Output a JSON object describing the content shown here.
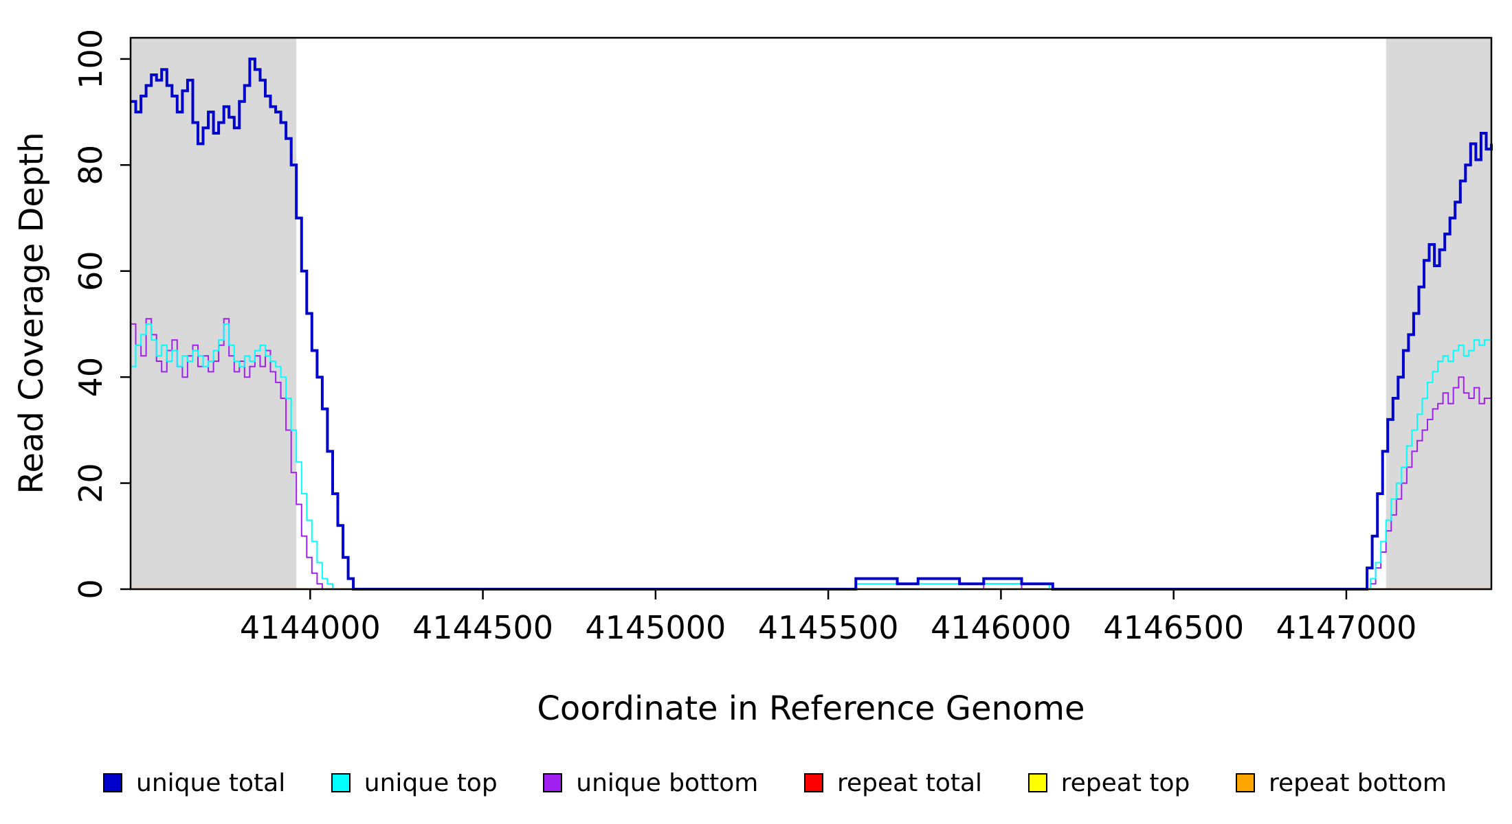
{
  "chart_data": {
    "type": "line",
    "title": "",
    "xlabel": "Coordinate in Reference Genome",
    "ylabel": "Read Coverage Depth",
    "xlim": [
      4143480,
      4147420
    ],
    "ylim": [
      0,
      104
    ],
    "xticks": [
      4144000,
      4144500,
      4145000,
      4145500,
      4146000,
      4146500,
      4147000
    ],
    "yticks": [
      0,
      20,
      40,
      60,
      80,
      100
    ],
    "grid": false,
    "legend_position": "bottom",
    "background_color": "#ffffff",
    "box_color": "#000000",
    "shaded_regions": [
      {
        "from": 4143480,
        "to": 4143960,
        "color": "#d9d9d9"
      },
      {
        "from": 4147115,
        "to": 4147420,
        "color": "#d9d9d9"
      }
    ],
    "series": [
      {
        "name": "repeat total",
        "color": "#ff0000",
        "width": 2,
        "points": [
          [
            4143480,
            0
          ],
          [
            4147420,
            0
          ]
        ]
      },
      {
        "name": "repeat top",
        "color": "#ffff00",
        "width": 2,
        "points": [
          [
            4143480,
            0
          ],
          [
            4147420,
            0
          ]
        ]
      },
      {
        "name": "repeat bottom",
        "color": "#ffa500",
        "width": 2.5,
        "points": [
          [
            4143480,
            0
          ],
          [
            4147420,
            0
          ]
        ]
      },
      {
        "name": "unique bottom",
        "color": "#a020f0",
        "width": 2,
        "points": [
          [
            4143480,
            50
          ],
          [
            4143495,
            46
          ],
          [
            4143510,
            44
          ],
          [
            4143525,
            51
          ],
          [
            4143540,
            48
          ],
          [
            4143555,
            43
          ],
          [
            4143570,
            41
          ],
          [
            4143585,
            45
          ],
          [
            4143600,
            47
          ],
          [
            4143615,
            42
          ],
          [
            4143630,
            40
          ],
          [
            4143645,
            44
          ],
          [
            4143660,
            46
          ],
          [
            4143675,
            42
          ],
          [
            4143690,
            44
          ],
          [
            4143705,
            41
          ],
          [
            4143720,
            43
          ],
          [
            4143735,
            46
          ],
          [
            4143750,
            51
          ],
          [
            4143765,
            44
          ],
          [
            4143780,
            41
          ],
          [
            4143795,
            43
          ],
          [
            4143810,
            40
          ],
          [
            4143825,
            42
          ],
          [
            4143840,
            44
          ],
          [
            4143855,
            42
          ],
          [
            4143870,
            45
          ],
          [
            4143885,
            41
          ],
          [
            4143900,
            39
          ],
          [
            4143915,
            36
          ],
          [
            4143930,
            30
          ],
          [
            4143945,
            22
          ],
          [
            4143960,
            16
          ],
          [
            4143975,
            10
          ],
          [
            4143990,
            6
          ],
          [
            4144005,
            3
          ],
          [
            4144020,
            1
          ],
          [
            4144035,
            0
          ],
          [
            4145950,
            1
          ],
          [
            4146060,
            0
          ],
          [
            4147070,
            1
          ],
          [
            4147085,
            4
          ],
          [
            4147100,
            7
          ],
          [
            4147115,
            11
          ],
          [
            4147130,
            14
          ],
          [
            4147145,
            17
          ],
          [
            4147160,
            20
          ],
          [
            4147175,
            23
          ],
          [
            4147190,
            26
          ],
          [
            4147205,
            28
          ],
          [
            4147220,
            30
          ],
          [
            4147235,
            32
          ],
          [
            4147250,
            34
          ],
          [
            4147265,
            35
          ],
          [
            4147280,
            37
          ],
          [
            4147295,
            35
          ],
          [
            4147310,
            38
          ],
          [
            4147325,
            40
          ],
          [
            4147340,
            37
          ],
          [
            4147355,
            36
          ],
          [
            4147370,
            38
          ],
          [
            4147385,
            35
          ],
          [
            4147400,
            36
          ],
          [
            4147420,
            35
          ]
        ]
      },
      {
        "name": "unique top",
        "color": "#00ffff",
        "width": 2,
        "points": [
          [
            4143480,
            42
          ],
          [
            4143495,
            46
          ],
          [
            4143510,
            48
          ],
          [
            4143525,
            50
          ],
          [
            4143540,
            47
          ],
          [
            4143555,
            44
          ],
          [
            4143570,
            46
          ],
          [
            4143585,
            43
          ],
          [
            4143600,
            45
          ],
          [
            4143615,
            42
          ],
          [
            4143630,
            44
          ],
          [
            4143645,
            43
          ],
          [
            4143660,
            45
          ],
          [
            4143675,
            44
          ],
          [
            4143690,
            42
          ],
          [
            4143705,
            43
          ],
          [
            4143720,
            45
          ],
          [
            4143735,
            47
          ],
          [
            4143750,
            50
          ],
          [
            4143765,
            46
          ],
          [
            4143780,
            43
          ],
          [
            4143795,
            42
          ],
          [
            4143810,
            44
          ],
          [
            4143825,
            43
          ],
          [
            4143840,
            45
          ],
          [
            4143855,
            46
          ],
          [
            4143870,
            44
          ],
          [
            4143885,
            43
          ],
          [
            4143900,
            42
          ],
          [
            4143915,
            40
          ],
          [
            4143930,
            36
          ],
          [
            4143945,
            30
          ],
          [
            4143960,
            24
          ],
          [
            4143975,
            18
          ],
          [
            4143990,
            13
          ],
          [
            4144005,
            9
          ],
          [
            4144020,
            5
          ],
          [
            4144035,
            2
          ],
          [
            4144050,
            1
          ],
          [
            4144065,
            0
          ],
          [
            4145580,
            1
          ],
          [
            4146140,
            0
          ],
          [
            4147070,
            2
          ],
          [
            4147085,
            5
          ],
          [
            4147100,
            9
          ],
          [
            4147115,
            13
          ],
          [
            4147130,
            17
          ],
          [
            4147145,
            20
          ],
          [
            4147160,
            23
          ],
          [
            4147175,
            27
          ],
          [
            4147190,
            30
          ],
          [
            4147205,
            33
          ],
          [
            4147220,
            36
          ],
          [
            4147235,
            39
          ],
          [
            4147250,
            41
          ],
          [
            4147265,
            43
          ],
          [
            4147280,
            44
          ],
          [
            4147295,
            43
          ],
          [
            4147310,
            45
          ],
          [
            4147325,
            46
          ],
          [
            4147340,
            44
          ],
          [
            4147355,
            45
          ],
          [
            4147370,
            47
          ],
          [
            4147385,
            46
          ],
          [
            4147400,
            47
          ],
          [
            4147420,
            48
          ]
        ]
      },
      {
        "name": "unique total",
        "color": "#0000cd",
        "width": 4,
        "points": [
          [
            4143480,
            92
          ],
          [
            4143495,
            90
          ],
          [
            4143510,
            93
          ],
          [
            4143525,
            95
          ],
          [
            4143540,
            97
          ],
          [
            4143555,
            96
          ],
          [
            4143570,
            98
          ],
          [
            4143585,
            95
          ],
          [
            4143600,
            93
          ],
          [
            4143615,
            90
          ],
          [
            4143630,
            94
          ],
          [
            4143645,
            96
          ],
          [
            4143660,
            88
          ],
          [
            4143675,
            84
          ],
          [
            4143690,
            87
          ],
          [
            4143705,
            90
          ],
          [
            4143720,
            86
          ],
          [
            4143735,
            88
          ],
          [
            4143750,
            91
          ],
          [
            4143765,
            89
          ],
          [
            4143780,
            87
          ],
          [
            4143795,
            92
          ],
          [
            4143810,
            95
          ],
          [
            4143825,
            100
          ],
          [
            4143840,
            98
          ],
          [
            4143855,
            96
          ],
          [
            4143870,
            93
          ],
          [
            4143885,
            91
          ],
          [
            4143900,
            90
          ],
          [
            4143915,
            88
          ],
          [
            4143930,
            85
          ],
          [
            4143945,
            80
          ],
          [
            4143960,
            70
          ],
          [
            4143975,
            60
          ],
          [
            4143990,
            52
          ],
          [
            4144005,
            45
          ],
          [
            4144020,
            40
          ],
          [
            4144035,
            34
          ],
          [
            4144050,
            26
          ],
          [
            4144065,
            18
          ],
          [
            4144080,
            12
          ],
          [
            4144095,
            6
          ],
          [
            4144110,
            2
          ],
          [
            4144125,
            0
          ],
          [
            4145580,
            2
          ],
          [
            4145700,
            1
          ],
          [
            4145760,
            2
          ],
          [
            4145880,
            1
          ],
          [
            4145950,
            2
          ],
          [
            4146060,
            1
          ],
          [
            4146150,
            0
          ],
          [
            4147060,
            4
          ],
          [
            4147075,
            10
          ],
          [
            4147090,
            18
          ],
          [
            4147105,
            26
          ],
          [
            4147120,
            32
          ],
          [
            4147135,
            36
          ],
          [
            4147150,
            40
          ],
          [
            4147165,
            45
          ],
          [
            4147180,
            48
          ],
          [
            4147195,
            52
          ],
          [
            4147210,
            57
          ],
          [
            4147225,
            62
          ],
          [
            4147240,
            65
          ],
          [
            4147255,
            61
          ],
          [
            4147270,
            64
          ],
          [
            4147285,
            67
          ],
          [
            4147300,
            70
          ],
          [
            4147315,
            73
          ],
          [
            4147330,
            77
          ],
          [
            4147345,
            80
          ],
          [
            4147360,
            84
          ],
          [
            4147375,
            81
          ],
          [
            4147390,
            86
          ],
          [
            4147405,
            83
          ],
          [
            4147420,
            84
          ]
        ]
      }
    ]
  },
  "legend": {
    "items": [
      {
        "label": "unique total",
        "color": "#0000cd"
      },
      {
        "label": "unique top",
        "color": "#00ffff"
      },
      {
        "label": "unique bottom",
        "color": "#a020f0"
      },
      {
        "label": "repeat total",
        "color": "#ff0000"
      },
      {
        "label": "repeat top",
        "color": "#ffff00"
      },
      {
        "label": "repeat bottom",
        "color": "#ffa500"
      }
    ]
  }
}
